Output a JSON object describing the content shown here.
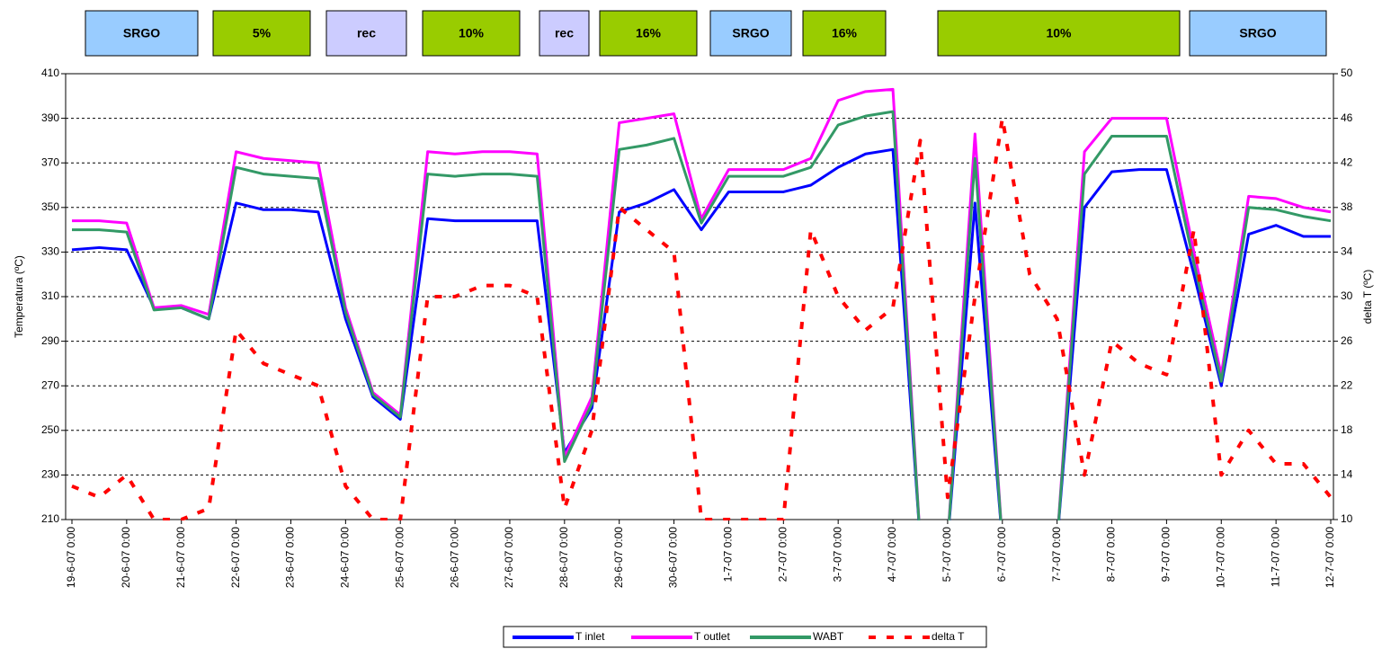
{
  "chart_data": {
    "type": "line",
    "annotations": [
      {
        "label": "SRGO",
        "color": "#99ccff"
      },
      {
        "label": "5%",
        "color": "#99cc00"
      },
      {
        "label": "rec",
        "color": "#ccccff"
      },
      {
        "label": "10%",
        "color": "#99cc00"
      },
      {
        "label": "rec",
        "color": "#ccccff"
      },
      {
        "label": "16%",
        "color": "#99cc00"
      },
      {
        "label": "SRGO",
        "color": "#99ccff"
      },
      {
        "label": "16%",
        "color": "#99cc00"
      },
      {
        "label": "10%",
        "color": "#99cc00"
      },
      {
        "label": "SRGO",
        "color": "#99ccff"
      }
    ],
    "ylabel": "Temperatura (ºC)",
    "y2label": "delta T (ºC)",
    "x": [
      "19-6-07 0:00",
      "19-6-07 12:00",
      "20-6-07 0:00",
      "20-6-07 12:00",
      "21-6-07 0:00",
      "21-6-07 12:00",
      "22-6-07 0:00",
      "22-6-07 12:00",
      "23-6-07 0:00",
      "23-6-07 12:00",
      "24-6-07 0:00",
      "24-6-07 12:00",
      "25-6-07 0:00",
      "25-6-07 12:00",
      "26-6-07 0:00",
      "26-6-07 12:00",
      "27-6-07 0:00",
      "27-6-07 12:00",
      "28-6-07 0:00",
      "28-6-07 12:00",
      "29-6-07 0:00",
      "29-6-07 12:00",
      "30-6-07 0:00",
      "30-6-07 12:00",
      "1-7-07 0:00",
      "1-7-07 12:00",
      "2-7-07 0:00",
      "2-7-07 12:00",
      "3-7-07 0:00",
      "3-7-07 12:00",
      "4-7-07 0:00",
      "4-7-07 12:00",
      "5-7-07 0:00",
      "5-7-07 12:00",
      "6-7-07 0:00",
      "6-7-07 12:00",
      "7-7-07 0:00",
      "7-7-07 12:00",
      "8-7-07 0:00",
      "8-7-07 12:00",
      "9-7-07 0:00",
      "9-7-07 12:00",
      "10-7-07 0:00",
      "10-7-07 12:00",
      "11-7-07 0:00",
      "11-7-07 12:00",
      "12-7-07 0:00"
    ],
    "xticks": [
      "19-6-07 0:00",
      "20-6-07 0:00",
      "21-6-07 0:00",
      "22-6-07 0:00",
      "23-6-07 0:00",
      "24-6-07 0:00",
      "25-6-07 0:00",
      "26-6-07 0:00",
      "27-6-07 0:00",
      "28-6-07 0:00",
      "29-6-07 0:00",
      "30-6-07 0:00",
      "1-7-07 0:00",
      "2-7-07 0:00",
      "3-7-07 0:00",
      "4-7-07 0:00",
      "5-7-07 0:00",
      "6-7-07 0:00",
      "7-7-07 0:00",
      "8-7-07 0:00",
      "9-7-07 0:00",
      "10-7-07 0:00",
      "11-7-07 0:00",
      "12-7-07 0:00"
    ],
    "ylim": [
      210,
      410
    ],
    "yticks": [
      210,
      230,
      250,
      270,
      290,
      310,
      330,
      350,
      370,
      390,
      410
    ],
    "y2lim": [
      10,
      50
    ],
    "y2ticks": [
      10,
      14,
      18,
      22,
      26,
      30,
      34,
      38,
      42,
      46,
      50
    ],
    "grid": true,
    "legend": "bottom",
    "series": [
      {
        "name": "T inlet",
        "color": "#0000ff",
        "values": [
          331,
          332,
          331,
          305,
          305,
          300,
          352,
          349,
          349,
          348,
          300,
          265,
          255,
          345,
          344,
          344,
          344,
          344,
          240,
          260,
          348,
          352,
          358,
          340,
          357,
          357,
          357,
          360,
          368,
          374,
          376,
          200,
          200,
          352,
          200,
          200,
          200,
          350,
          366,
          367,
          367,
          320,
          270,
          338,
          342,
          337,
          337
        ]
      },
      {
        "name": "T outlet",
        "color": "#ff00ff",
        "values": [
          344,
          344,
          343,
          305,
          306,
          302,
          375,
          372,
          371,
          370,
          305,
          267,
          257,
          375,
          374,
          375,
          375,
          374,
          238,
          265,
          388,
          390,
          392,
          345,
          367,
          367,
          367,
          372,
          398,
          402,
          403,
          200,
          200,
          383,
          200,
          200,
          200,
          375,
          390,
          390,
          390,
          330,
          275,
          355,
          354,
          350,
          348
        ]
      },
      {
        "name": "WABT",
        "color": "#339966",
        "values": [
          340,
          340,
          339,
          304,
          305,
          300,
          368,
          365,
          364,
          363,
          303,
          266,
          256,
          365,
          364,
          365,
          365,
          364,
          236,
          262,
          376,
          378,
          381,
          343,
          364,
          364,
          364,
          368,
          387,
          391,
          393,
          200,
          200,
          372,
          200,
          200,
          200,
          365,
          382,
          382,
          382,
          325,
          272,
          350,
          349,
          346,
          344
        ]
      },
      {
        "name": "delta T",
        "color": "#ff0000",
        "axis": "y2",
        "dashed": true,
        "values": [
          13,
          12,
          14,
          10,
          10,
          11,
          27,
          24,
          23,
          22,
          13,
          10,
          10,
          30,
          30,
          31,
          31,
          30,
          11,
          18,
          38,
          36,
          34,
          10,
          10,
          10,
          10,
          36,
          30,
          27,
          29,
          44,
          12,
          30,
          46,
          32,
          28,
          14,
          26,
          24,
          23,
          36,
          14,
          18,
          15,
          15,
          12
        ]
      }
    ]
  }
}
